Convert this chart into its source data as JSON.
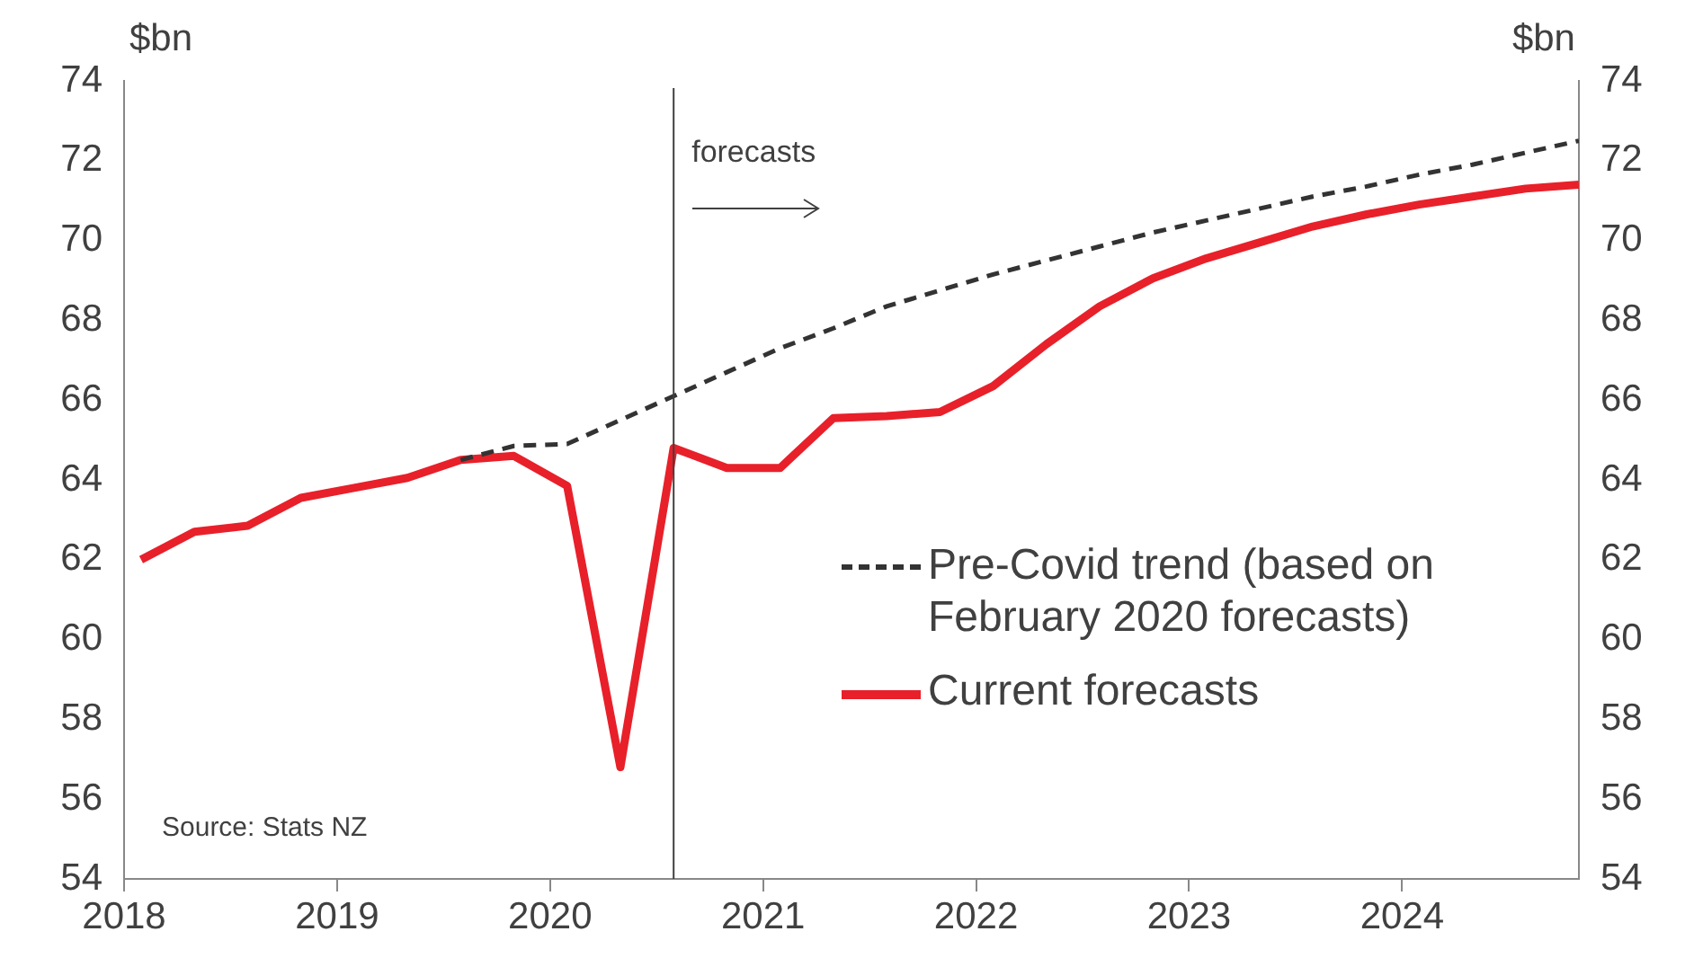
{
  "chart_data": {
    "type": "line",
    "ylabel": "$bn",
    "y2label": "$bn",
    "xlim": [
      2018,
      2024.83
    ],
    "xticks": [
      2018,
      2019,
      2020,
      2021,
      2022,
      2023,
      2024
    ],
    "ylim": [
      54,
      74
    ],
    "yticks": [
      54,
      56,
      58,
      60,
      62,
      64,
      66,
      68,
      70,
      72,
      74
    ],
    "y2lim": [
      54,
      74
    ],
    "y2ticks": [
      54,
      56,
      58,
      60,
      62,
      64,
      66,
      68,
      70,
      72,
      74
    ],
    "grid": false,
    "legend": "bottom right",
    "marker": "none",
    "series": [
      {
        "name": "Pre-Covid trend (based on February 2020 forecasts)",
        "color": "#333333",
        "line_style": "dashed",
        "x": [
          2019.58,
          2019.83,
          2020.08,
          2020.33,
          2020.58,
          2020.83,
          2021.08,
          2021.33,
          2021.58,
          2021.83,
          2022.08,
          2022.33,
          2022.58,
          2022.83,
          2023.08,
          2023.33,
          2023.58,
          2023.83,
          2024.08,
          2024.33,
          2024.58,
          2024.83
        ],
        "values": [
          64.5,
          64.85,
          64.9,
          65.5,
          66.1,
          66.7,
          67.3,
          67.8,
          68.35,
          68.75,
          69.15,
          69.5,
          69.85,
          70.2,
          70.5,
          70.8,
          71.1,
          71.35,
          71.65,
          71.9,
          72.2,
          72.5
        ]
      },
      {
        "name": "Current forecasts",
        "color": "#e8202a",
        "line_style": "solid",
        "x": [
          2018.08,
          2018.33,
          2018.58,
          2018.83,
          2019.08,
          2019.33,
          2019.58,
          2019.83,
          2020.08,
          2020.33,
          2020.58,
          2020.83,
          2021.08,
          2021.33,
          2021.58,
          2021.83,
          2022.08,
          2022.33,
          2022.58,
          2022.83,
          2023.08,
          2023.33,
          2023.58,
          2023.83,
          2024.08,
          2024.33,
          2024.58,
          2024.83
        ],
        "values": [
          62.0,
          62.7,
          62.85,
          63.55,
          63.8,
          64.05,
          64.5,
          64.6,
          63.85,
          56.8,
          64.8,
          64.3,
          64.3,
          65.55,
          65.6,
          65.7,
          66.35,
          67.4,
          68.35,
          69.05,
          69.55,
          69.95,
          70.35,
          70.65,
          70.9,
          71.1,
          71.3,
          71.4
        ]
      }
    ],
    "ref_lines": [
      {
        "axis": "x",
        "value": 2020.58,
        "label": "forecasts",
        "color": "#404040"
      }
    ],
    "annotations": [
      "Source: Stats NZ"
    ]
  }
}
